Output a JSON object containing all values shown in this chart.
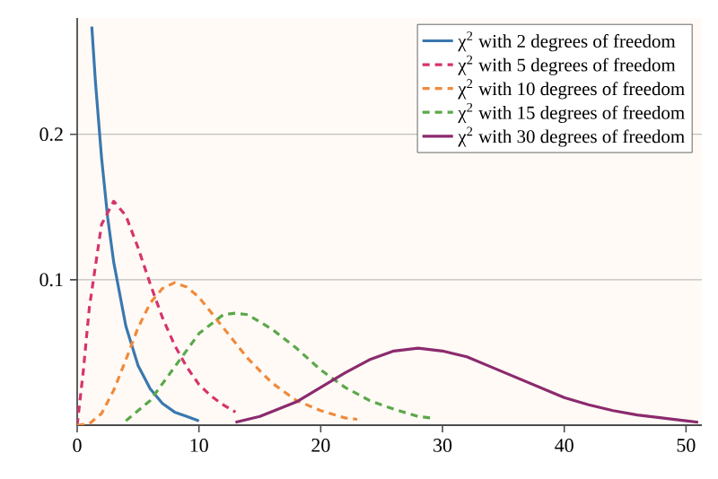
{
  "chart_data": {
    "type": "line",
    "xlim": [
      0,
      51.3
    ],
    "ylim": [
      0,
      0.28
    ],
    "xticks": [
      0,
      10,
      20,
      30,
      40,
      50
    ],
    "yticks": [
      0.1,
      0.2
    ],
    "grid": "y",
    "legend": "top right",
    "marker": "none",
    "series": [
      {
        "name": "χ$^{2}$ with 2 degrees of freedom",
        "color": "#3a78b0",
        "line_style": "solid",
        "x": [
          1.2,
          1.5,
          2,
          2.5,
          3,
          4,
          5,
          6,
          7,
          8,
          9,
          10
        ],
        "values": [
          0.274,
          0.236,
          0.184,
          0.143,
          0.112,
          0.068,
          0.041,
          0.025,
          0.015,
          0.009,
          0.006,
          0.003
        ]
      },
      {
        "name": "χ$^{2}$ with 5 degrees of freedom",
        "color": "#d6336c",
        "line_style": "dashed",
        "x": [
          0,
          0.5,
          1,
          2,
          3,
          4,
          5,
          6,
          7,
          8,
          9,
          10,
          11,
          12,
          13
        ],
        "values": [
          0,
          0.037,
          0.081,
          0.138,
          0.154,
          0.144,
          0.122,
          0.097,
          0.074,
          0.055,
          0.04,
          0.028,
          0.02,
          0.014,
          0.009
        ]
      },
      {
        "name": "χ$^{2}$ with 10 degrees of freedom",
        "color": "#f08a3c",
        "line_style": "dashed",
        "x": [
          0,
          1,
          2,
          3,
          4,
          5,
          6,
          7,
          8,
          9,
          10,
          12,
          14,
          16,
          18,
          20,
          22,
          23
        ],
        "values": [
          0,
          0.001,
          0.008,
          0.024,
          0.045,
          0.067,
          0.084,
          0.094,
          0.098,
          0.095,
          0.088,
          0.067,
          0.046,
          0.029,
          0.017,
          0.01,
          0.005,
          0.004
        ]
      },
      {
        "name": "χ$^{2}$ with 15 degrees of freedom",
        "color": "#5aa84a",
        "line_style": "dashed",
        "x": [
          4,
          6,
          8,
          10,
          12,
          13,
          14,
          16,
          18,
          20,
          22,
          24,
          26,
          28,
          29
        ],
        "values": [
          0.003,
          0.017,
          0.04,
          0.063,
          0.076,
          0.077,
          0.076,
          0.066,
          0.053,
          0.038,
          0.026,
          0.017,
          0.011,
          0.006,
          0.005
        ]
      },
      {
        "name": "χ$^{2}$ with 30 degrees of freedom",
        "color": "#8b2a6e",
        "line_style": "solid",
        "x": [
          13,
          15,
          18,
          20,
          22,
          24,
          26,
          28,
          30,
          32,
          34,
          36,
          38,
          40,
          42,
          44,
          46,
          48,
          50,
          51
        ],
        "values": [
          0.002,
          0.006,
          0.016,
          0.026,
          0.036,
          0.045,
          0.051,
          0.053,
          0.051,
          0.047,
          0.04,
          0.033,
          0.026,
          0.019,
          0.014,
          0.01,
          0.007,
          0.005,
          0.003,
          0.002
        ]
      }
    ]
  }
}
